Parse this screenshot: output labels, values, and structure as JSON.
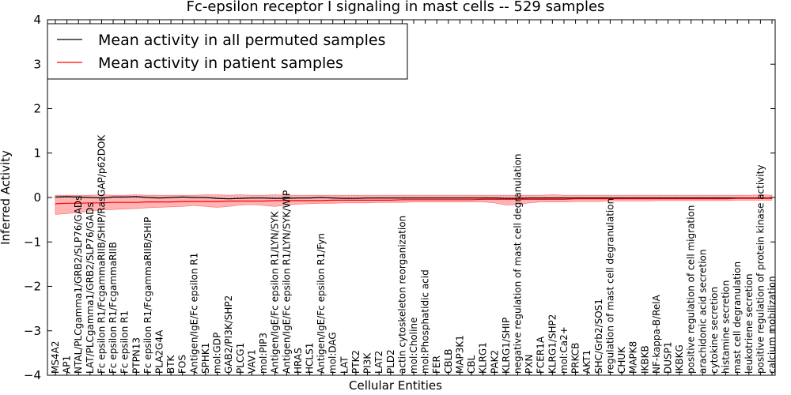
{
  "chart_data": {
    "type": "line",
    "title": "Fc-epsilon receptor I signaling in mast cells -- 529 samples",
    "xlabel": "Cellular Entities",
    "ylabel": "Inferred Activity",
    "ylim": [
      -4,
      4
    ],
    "yticks": [
      -4,
      -3,
      -2,
      -1,
      0,
      1,
      2,
      3,
      4
    ],
    "ytick_labels": [
      "−4",
      "−3",
      "−2",
      "−1",
      "0",
      "1",
      "2",
      "3",
      "4"
    ],
    "legend": {
      "placement": "top-left",
      "entries": [
        {
          "label": "Mean activity in all permuted samples",
          "color": "#000000"
        },
        {
          "label": "Mean activity in patient samples",
          "color": "#ff0000"
        }
      ]
    },
    "colors": {
      "permuted": "#000000",
      "patient": "#ff0000",
      "band_fill": "#ff9a9a",
      "zero_line": "#4a90c8"
    },
    "categories": [
      "MS4A2",
      "AP1",
      "NTAL/PLCgamma1/GRB2/SLP76/GADs",
      "LAT/PLCgamma1/GRB2/SLP76/GADs",
      "Fc epsilon R1/FcgammaRIIB/SHIP/RasGAP/p62DOK",
      "Fc epsilon R1/FcgammaRIIB",
      "Fc epsilon R1",
      "PTPN13",
      "Fc epsilon R1/FcgammaRIIB/SHIP",
      "PLA2G4A",
      "BTK",
      "FOS",
      "Antigen/IgE/Fc epsilon R1",
      "SPHK1",
      "mol:GDP",
      "GAB2/PI3K/SHP2",
      "PLCG1",
      "VAV1",
      "mol:PIP3",
      "Antigen/IgE/Fc epsilon R1/LYN/SYK",
      "Antigen/IgE/Fc epsilon R1/LYN/SYK/WIP",
      "HRAS",
      "HCLS1",
      "Antigen/IgE/Fc epsilon R1/Fyn",
      "mol:DAG",
      "LAT",
      "PTK2",
      "PI3K",
      "LAT2",
      "PLD2",
      "actin cytoskeleton reorganization",
      "mol:Choline",
      "mol:Phosphatidic acid",
      "FER",
      "CBLB",
      "MAP3K1",
      "CBL",
      "KLRG1",
      "PAK2",
      "KLRG1/SHIP",
      "negative regulation of mast cell degranulation",
      "PXN",
      "FCER1A",
      "KLRG1/SHP2",
      "mol:Ca2+",
      "PRKCB",
      "AKT1",
      "SHC/Grb2/SOS1",
      "regulation of mast cell degranulation",
      "CHUK",
      "MAPK8",
      "IKBKB",
      "NF-kappa-B/RelA",
      "DUSP1",
      "IKBKG",
      "positive regulation of cell migration",
      "arachidonic acid secretion",
      "cytokine secretion",
      "histamine secretion",
      "mast cell degranulation",
      "leukotriene secretion",
      "positive regulation of protein kinase activity",
      "calcium mobilization"
    ],
    "series": [
      {
        "name": "Mean activity in all permuted samples",
        "values": [
          0.01,
          0.02,
          0.01,
          0.0,
          -0.01,
          0.01,
          0.01,
          0.02,
          0.0,
          -0.01,
          0.0,
          0.01,
          0.0,
          0.0,
          -0.02,
          -0.03,
          -0.02,
          -0.01,
          -0.01,
          -0.02,
          -0.02,
          -0.01,
          -0.01,
          0.0,
          -0.01,
          -0.02,
          -0.02,
          -0.01,
          -0.01,
          -0.01,
          -0.01,
          -0.01,
          -0.01,
          -0.01,
          -0.01,
          -0.01,
          -0.01,
          -0.01,
          -0.01,
          -0.02,
          -0.02,
          -0.01,
          -0.01,
          -0.01,
          -0.01,
          -0.01,
          -0.01,
          -0.01,
          -0.01,
          -0.01,
          -0.01,
          -0.01,
          -0.01,
          -0.01,
          -0.01,
          -0.01,
          -0.01,
          -0.01,
          -0.01,
          -0.01,
          -0.01,
          -0.01,
          -0.01
        ]
      },
      {
        "name": "Mean activity in patient samples",
        "values": [
          -0.14,
          -0.13,
          -0.13,
          -0.12,
          -0.12,
          -0.11,
          -0.11,
          -0.11,
          -0.1,
          -0.1,
          -0.1,
          -0.09,
          -0.09,
          -0.09,
          -0.09,
          -0.08,
          -0.08,
          -0.08,
          -0.08,
          -0.07,
          -0.07,
          -0.07,
          -0.07,
          -0.07,
          -0.06,
          -0.06,
          -0.06,
          -0.06,
          -0.06,
          -0.06,
          -0.05,
          -0.05,
          -0.05,
          -0.05,
          -0.05,
          -0.05,
          -0.05,
          -0.04,
          -0.04,
          -0.04,
          -0.04,
          -0.04,
          -0.04,
          -0.04,
          -0.04,
          -0.03,
          -0.03,
          -0.03,
          -0.03,
          -0.03,
          -0.03,
          -0.03,
          -0.03,
          -0.03,
          -0.03,
          -0.03,
          -0.03,
          -0.03,
          -0.03,
          -0.02,
          -0.02,
          -0.02,
          -0.02
        ]
      }
    ],
    "band": {
      "upper": [
        0.05,
        0.05,
        0.05,
        0.05,
        0.06,
        0.05,
        0.05,
        0.06,
        0.05,
        0.05,
        0.05,
        0.05,
        0.05,
        0.06,
        0.06,
        0.05,
        0.06,
        0.05,
        0.05,
        0.06,
        0.05,
        0.05,
        0.05,
        0.05,
        0.05,
        0.05,
        0.05,
        0.05,
        0.05,
        0.05,
        0.05,
        0.05,
        0.05,
        0.05,
        0.05,
        0.05,
        0.05,
        0.05,
        0.05,
        0.05,
        0.05,
        0.05,
        0.05,
        0.06,
        0.05,
        0.05,
        0.05,
        0.05,
        0.05,
        0.05,
        0.05,
        0.05,
        0.05,
        0.05,
        0.05,
        0.05,
        0.05,
        0.05,
        0.05,
        0.05,
        0.05,
        0.06,
        0.05
      ],
      "lower": [
        -0.38,
        -0.36,
        -0.34,
        -0.3,
        -0.28,
        -0.27,
        -0.26,
        -0.25,
        -0.23,
        -0.22,
        -0.21,
        -0.2,
        -0.18,
        -0.2,
        -0.22,
        -0.2,
        -0.17,
        -0.16,
        -0.18,
        -0.2,
        -0.17,
        -0.15,
        -0.14,
        -0.13,
        -0.13,
        -0.12,
        -0.12,
        -0.12,
        -0.11,
        -0.11,
        -0.11,
        -0.1,
        -0.1,
        -0.1,
        -0.1,
        -0.1,
        -0.1,
        -0.1,
        -0.12,
        -0.17,
        -0.16,
        -0.12,
        -0.1,
        -0.1,
        -0.1,
        -0.09,
        -0.09,
        -0.09,
        -0.08,
        -0.08,
        -0.08,
        -0.08,
        -0.07,
        -0.07,
        -0.07,
        -0.07,
        -0.07,
        -0.07,
        -0.07,
        -0.06,
        -0.06,
        -0.06,
        -0.06
      ]
    }
  }
}
